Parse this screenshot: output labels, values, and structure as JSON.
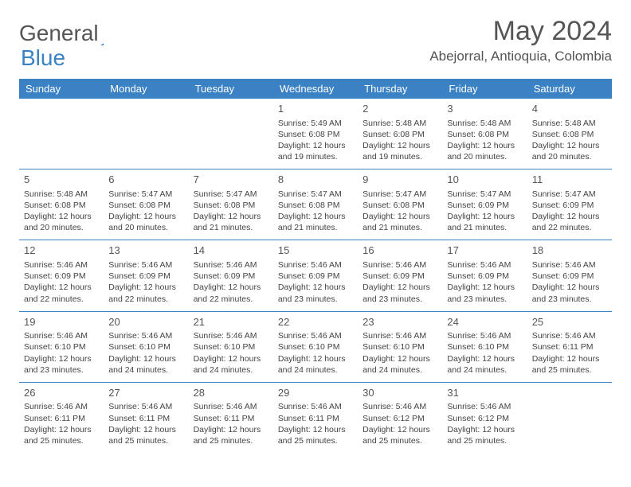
{
  "logo": {
    "part1": "General",
    "part2": "Blue"
  },
  "title": "May 2024",
  "location": "Abejorral, Antioquia, Colombia",
  "header_bg": "#3b82c4",
  "day_names": [
    "Sunday",
    "Monday",
    "Tuesday",
    "Wednesday",
    "Thursday",
    "Friday",
    "Saturday"
  ],
  "weeks": [
    [
      null,
      null,
      null,
      {
        "n": "1",
        "sr": "5:49 AM",
        "ss": "6:08 PM",
        "dl": "12 hours and 19 minutes."
      },
      {
        "n": "2",
        "sr": "5:48 AM",
        "ss": "6:08 PM",
        "dl": "12 hours and 19 minutes."
      },
      {
        "n": "3",
        "sr": "5:48 AM",
        "ss": "6:08 PM",
        "dl": "12 hours and 20 minutes."
      },
      {
        "n": "4",
        "sr": "5:48 AM",
        "ss": "6:08 PM",
        "dl": "12 hours and 20 minutes."
      }
    ],
    [
      {
        "n": "5",
        "sr": "5:48 AM",
        "ss": "6:08 PM",
        "dl": "12 hours and 20 minutes."
      },
      {
        "n": "6",
        "sr": "5:47 AM",
        "ss": "6:08 PM",
        "dl": "12 hours and 20 minutes."
      },
      {
        "n": "7",
        "sr": "5:47 AM",
        "ss": "6:08 PM",
        "dl": "12 hours and 21 minutes."
      },
      {
        "n": "8",
        "sr": "5:47 AM",
        "ss": "6:08 PM",
        "dl": "12 hours and 21 minutes."
      },
      {
        "n": "9",
        "sr": "5:47 AM",
        "ss": "6:08 PM",
        "dl": "12 hours and 21 minutes."
      },
      {
        "n": "10",
        "sr": "5:47 AM",
        "ss": "6:09 PM",
        "dl": "12 hours and 21 minutes."
      },
      {
        "n": "11",
        "sr": "5:47 AM",
        "ss": "6:09 PM",
        "dl": "12 hours and 22 minutes."
      }
    ],
    [
      {
        "n": "12",
        "sr": "5:46 AM",
        "ss": "6:09 PM",
        "dl": "12 hours and 22 minutes."
      },
      {
        "n": "13",
        "sr": "5:46 AM",
        "ss": "6:09 PM",
        "dl": "12 hours and 22 minutes."
      },
      {
        "n": "14",
        "sr": "5:46 AM",
        "ss": "6:09 PM",
        "dl": "12 hours and 22 minutes."
      },
      {
        "n": "15",
        "sr": "5:46 AM",
        "ss": "6:09 PM",
        "dl": "12 hours and 23 minutes."
      },
      {
        "n": "16",
        "sr": "5:46 AM",
        "ss": "6:09 PM",
        "dl": "12 hours and 23 minutes."
      },
      {
        "n": "17",
        "sr": "5:46 AM",
        "ss": "6:09 PM",
        "dl": "12 hours and 23 minutes."
      },
      {
        "n": "18",
        "sr": "5:46 AM",
        "ss": "6:09 PM",
        "dl": "12 hours and 23 minutes."
      }
    ],
    [
      {
        "n": "19",
        "sr": "5:46 AM",
        "ss": "6:10 PM",
        "dl": "12 hours and 23 minutes."
      },
      {
        "n": "20",
        "sr": "5:46 AM",
        "ss": "6:10 PM",
        "dl": "12 hours and 24 minutes."
      },
      {
        "n": "21",
        "sr": "5:46 AM",
        "ss": "6:10 PM",
        "dl": "12 hours and 24 minutes."
      },
      {
        "n": "22",
        "sr": "5:46 AM",
        "ss": "6:10 PM",
        "dl": "12 hours and 24 minutes."
      },
      {
        "n": "23",
        "sr": "5:46 AM",
        "ss": "6:10 PM",
        "dl": "12 hours and 24 minutes."
      },
      {
        "n": "24",
        "sr": "5:46 AM",
        "ss": "6:10 PM",
        "dl": "12 hours and 24 minutes."
      },
      {
        "n": "25",
        "sr": "5:46 AM",
        "ss": "6:11 PM",
        "dl": "12 hours and 25 minutes."
      }
    ],
    [
      {
        "n": "26",
        "sr": "5:46 AM",
        "ss": "6:11 PM",
        "dl": "12 hours and 25 minutes."
      },
      {
        "n": "27",
        "sr": "5:46 AM",
        "ss": "6:11 PM",
        "dl": "12 hours and 25 minutes."
      },
      {
        "n": "28",
        "sr": "5:46 AM",
        "ss": "6:11 PM",
        "dl": "12 hours and 25 minutes."
      },
      {
        "n": "29",
        "sr": "5:46 AM",
        "ss": "6:11 PM",
        "dl": "12 hours and 25 minutes."
      },
      {
        "n": "30",
        "sr": "5:46 AM",
        "ss": "6:12 PM",
        "dl": "12 hours and 25 minutes."
      },
      {
        "n": "31",
        "sr": "5:46 AM",
        "ss": "6:12 PM",
        "dl": "12 hours and 25 minutes."
      },
      null
    ]
  ],
  "labels": {
    "sunrise": "Sunrise:",
    "sunset": "Sunset:",
    "daylight": "Daylight:"
  }
}
